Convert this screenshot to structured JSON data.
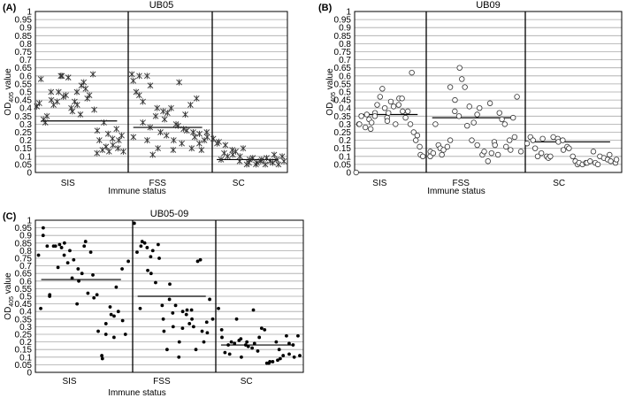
{
  "chart_data": [
    {
      "type": "scatter",
      "panel": "(A)",
      "title": "UB05",
      "marker": "asterisk",
      "ylabel_main": "OD",
      "ylabel_sub": "405",
      "ylabel_tail": " value",
      "xlabel": "Immune status",
      "categories": [
        "SIS",
        "FSS",
        "SC"
      ],
      "ylim": [
        0,
        1
      ],
      "yticks": [
        "0",
        "0.05",
        "0.1",
        "0.15",
        "0.2",
        "0.25",
        "0.3",
        "0.35",
        "0.4",
        "0.45",
        "0.5",
        "0.55",
        "0.6",
        "0.65",
        "0.7",
        "0.75",
        "0.8",
        "0.85",
        "0.9",
        "0.95",
        "1"
      ],
      "groups": [
        {
          "name": "SIS",
          "mean": 0.32,
          "values": [
            0.41,
            0.43,
            0.58,
            0.33,
            0.31,
            0.35,
            0.45,
            0.5,
            0.42,
            0.44,
            0.5,
            0.6,
            0.6,
            0.47,
            0.48,
            0.59,
            0.4,
            0.38,
            0.44,
            0.5,
            0.42,
            0.36,
            0.54,
            0.56,
            0.52,
            0.46,
            0.48,
            0.61,
            0.39,
            0.12,
            0.26,
            0.2,
            0.14,
            0.31,
            0.16,
            0.24,
            0.13,
            0.21,
            0.17,
            0.27,
            0.15,
            0.2,
            0.23,
            0.13
          ]
        },
        {
          "name": "FSS",
          "mean": 0.28,
          "values": [
            0.61,
            0.57,
            0.22,
            0.5,
            0.48,
            0.6,
            0.31,
            0.44,
            0.6,
            0.2,
            0.54,
            0.28,
            0.11,
            0.35,
            0.4,
            0.15,
            0.25,
            0.38,
            0.33,
            0.23,
            0.37,
            0.4,
            0.14,
            0.2,
            0.3,
            0.29,
            0.56,
            0.18,
            0.27,
            0.36,
            0.26,
            0.42,
            0.15,
            0.25,
            0.22,
            0.46,
            0.24,
            0.18,
            0.14,
            0.2,
            0.25,
            0.22
          ]
        },
        {
          "name": "SC",
          "mean": 0.08,
          "values": [
            0.21,
            0.18,
            0.19,
            0.08,
            0.12,
            0.17,
            0.1,
            0.14,
            0.11,
            0.13,
            0.07,
            0.1,
            0.15,
            0.05,
            0.06,
            0.08,
            0.09,
            0.05,
            0.06,
            0.07,
            0.08,
            0.05,
            0.09,
            0.07,
            0.06,
            0.11,
            0.08,
            0.05,
            0.1,
            0.07
          ]
        }
      ]
    },
    {
      "type": "scatter",
      "panel": "(B)",
      "title": "UB09",
      "marker": "open-circle",
      "ylabel_main": "OD",
      "ylabel_sub": "405",
      "ylabel_tail": " value",
      "xlabel": "Immune status",
      "categories": [
        "SIS",
        "FSS",
        "SC"
      ],
      "ylim": [
        0,
        1
      ],
      "yticks": [
        "0",
        "0.05",
        "0.1",
        "0.15",
        "0.2",
        "0.25",
        "0.3",
        "0.35",
        "0.4",
        "0.45",
        "0.5",
        "0.55",
        "0.6",
        "0.65",
        "0.7",
        "0.75",
        "0.8",
        "0.85",
        "0.9",
        "0.95",
        "1"
      ],
      "groups": [
        {
          "name": "SIS",
          "mean": 0.36,
          "values": [
            0.0,
            0.3,
            0.3,
            0.35,
            0.28,
            0.36,
            0.33,
            0.27,
            0.31,
            0.37,
            0.35,
            0.42,
            0.47,
            0.52,
            0.4,
            0.34,
            0.32,
            0.37,
            0.44,
            0.41,
            0.3,
            0.42,
            0.46,
            0.38,
            0.46,
            0.34,
            0.38,
            0.3,
            0.62,
            0.25,
            0.2,
            0.23,
            0.16,
            0.11,
            0.1
          ]
        },
        {
          "name": "FSS",
          "mean": 0.34,
          "values": [
            0.13,
            0.1,
            0.12,
            0.3,
            0.17,
            0.15,
            0.11,
            0.14,
            0.16,
            0.2,
            0.53,
            0.38,
            0.45,
            0.35,
            0.65,
            0.58,
            0.53,
            0.29,
            0.41,
            0.2,
            0.31,
            0.36,
            0.17,
            0.4,
            0.11,
            0.13,
            0.07,
            0.43,
            0.12,
            0.19,
            0.17,
            0.11,
            0.37,
            0.33,
            0.3,
            0.16,
            0.2,
            0.14,
            0.34,
            0.22,
            0.47,
            0.13
          ]
        },
        {
          "name": "SC",
          "mean": 0.19,
          "values": [
            0.18,
            0.22,
            0.2,
            0.15,
            0.1,
            0.12,
            0.21,
            0.1,
            0.09,
            0.1,
            0.22,
            0.21,
            0.19,
            0.2,
            0.14,
            0.16,
            0.15,
            0.1,
            0.07,
            0.05,
            0.06,
            0.05,
            0.06,
            0.06,
            0.07,
            0.13,
            0.06,
            0.05,
            0.1,
            0.09,
            0.08,
            0.11,
            0.07,
            0.06,
            0.08
          ]
        }
      ]
    },
    {
      "type": "scatter",
      "panel": "(C)",
      "title": "UB05-09",
      "marker": "filled-dot",
      "ylabel_main": "OD",
      "ylabel_sub": "405",
      "ylabel_tail": " value",
      "xlabel": "Immune status",
      "categories": [
        "SIS",
        "FSS",
        "SC"
      ],
      "ylim": [
        0,
        1
      ],
      "yticks": [
        "0",
        "0.05",
        "0.1",
        "0.15",
        "0.2",
        "0.25",
        "0.3",
        "0.35",
        "0.4",
        "0.45",
        "0.5",
        "0.55",
        "0.6",
        "0.65",
        "0.7",
        "0.75",
        "0.8",
        "0.85",
        "0.9",
        "0.95",
        "1"
      ],
      "groups": [
        {
          "name": "SIS",
          "mean": 0.61,
          "values": [
            0.77,
            0.42,
            0.9,
            0.95,
            0.83,
            0.5,
            0.51,
            0.83,
            0.83,
            0.69,
            0.84,
            0.82,
            0.85,
            0.77,
            0.72,
            0.8,
            0.62,
            0.74,
            0.45,
            0.68,
            0.6,
            0.65,
            0.83,
            0.86,
            0.52,
            0.79,
            0.64,
            0.49,
            0.51,
            0.27,
            0.11,
            0.09,
            0.25,
            0.32,
            0.43,
            0.38,
            0.37,
            0.23,
            0.56,
            0.4,
            0.68,
            0.34,
            0.25,
            0.73
          ]
        },
        {
          "name": "FSS",
          "mean": 0.5,
          "values": [
            0.98,
            0.79,
            0.42,
            0.83,
            0.86,
            0.85,
            0.82,
            0.67,
            0.65,
            0.76,
            0.8,
            0.59,
            0.84,
            0.75,
            0.44,
            0.35,
            0.27,
            0.15,
            0.48,
            0.58,
            0.39,
            0.3,
            0.44,
            0.2,
            0.1,
            0.4,
            0.29,
            0.38,
            0.41,
            0.32,
            0.41,
            0.35,
            0.3,
            0.15,
            0.73,
            0.74,
            0.27,
            0.2,
            0.33,
            0.26,
            0.48,
            0.35
          ]
        },
        {
          "name": "SC",
          "mean": 0.18,
          "values": [
            0.42,
            0.28,
            0.23,
            0.13,
            0.18,
            0.12,
            0.2,
            0.19,
            0.35,
            0.21,
            0.22,
            0.1,
            0.18,
            0.2,
            0.17,
            0.16,
            0.41,
            0.19,
            0.14,
            0.23,
            0.29,
            0.28,
            0.06,
            0.06,
            0.07,
            0.07,
            0.2,
            0.08,
            0.15,
            0.09,
            0.11,
            0.24,
            0.19,
            0.12,
            0.18,
            0.1,
            0.24,
            0.11
          ]
        }
      ]
    }
  ]
}
